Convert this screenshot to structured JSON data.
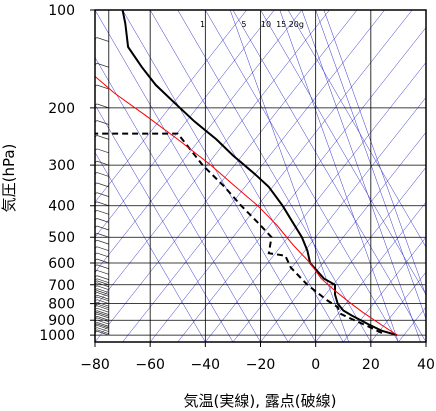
{
  "chart_data": {
    "type": "line",
    "xlabel": "気温(実線), 露点(破線)",
    "ylabel": "気圧(hPa)",
    "xlim": [
      -80,
      40
    ],
    "ylim_hpa": [
      1050,
      100
    ],
    "y_scale": "log",
    "x_ticks": [
      "−80",
      "−60",
      "−40",
      "−20",
      "0",
      "20",
      "40"
    ],
    "x_tick_values": [
      -80,
      -60,
      -40,
      -20,
      0,
      20,
      40
    ],
    "y_ticks": [
      "100",
      "200",
      "300",
      "400",
      "500",
      "600",
      "700",
      "800",
      "900",
      "1000"
    ],
    "y_tick_values": [
      100,
      200,
      300,
      400,
      500,
      600,
      700,
      800,
      900,
      1000
    ],
    "mixing_ratio_labels": [
      "1",
      "5",
      "10",
      "15",
      "20g"
    ],
    "grid": true,
    "colors": {
      "temperature": "#000000",
      "dewpoint": "#000000",
      "parcel": "#ff0000",
      "background_lines": "#3333cc",
      "grid": "#000000"
    },
    "series": [
      {
        "role": "temperature",
        "style": "solid",
        "points": [
          [
            29.5,
            1000
          ],
          [
            24,
            970
          ],
          [
            19,
            925
          ],
          [
            13,
            870
          ],
          [
            10,
            840
          ],
          [
            8,
            800
          ],
          [
            7,
            750
          ],
          [
            7,
            700
          ],
          [
            3,
            670
          ],
          [
            -2,
            600
          ],
          [
            -3,
            550
          ],
          [
            -5,
            500
          ],
          [
            -9,
            440
          ],
          [
            -12,
            400
          ],
          [
            -17,
            350
          ],
          [
            -22,
            320
          ],
          [
            -30,
            280
          ],
          [
            -36,
            250
          ],
          [
            -44,
            220
          ],
          [
            -52,
            190
          ],
          [
            -58,
            170
          ],
          [
            -63,
            150
          ],
          [
            -68,
            130
          ],
          [
            -69,
            110
          ],
          [
            -70,
            100
          ]
        ]
      },
      {
        "role": "dewpoint",
        "style": "dashed",
        "points": [
          [
            24,
            985
          ],
          [
            19,
            940
          ],
          [
            14,
            900
          ],
          [
            9,
            860
          ],
          [
            8,
            820
          ],
          [
            4,
            780
          ],
          [
            -3,
            700
          ],
          [
            -9,
            620
          ],
          [
            -11,
            570
          ],
          [
            -17,
            560
          ],
          [
            -16,
            500
          ],
          [
            -21,
            450
          ],
          [
            -27,
            400
          ],
          [
            -33,
            350
          ],
          [
            -41,
            300
          ],
          [
            -50,
            240
          ],
          [
            -82,
            240
          ]
        ]
      },
      {
        "role": "parcel",
        "style": "solid",
        "points": [
          [
            29.5,
            1000
          ],
          [
            23,
            920
          ],
          [
            17,
            850
          ],
          [
            12,
            790
          ],
          [
            7,
            730
          ],
          [
            2,
            670
          ],
          [
            -2,
            600
          ],
          [
            -8,
            530
          ],
          [
            -14,
            460
          ],
          [
            -21,
            400
          ],
          [
            -29,
            350
          ],
          [
            -38,
            300
          ],
          [
            -50,
            250
          ],
          [
            -62,
            210
          ],
          [
            -73,
            180
          ],
          [
            -80,
            160
          ],
          [
            -87,
            140
          ]
        ]
      }
    ],
    "wind_barbs": {
      "x_position": -75,
      "pressure_levels": [
        1000,
        990,
        975,
        960,
        950,
        940,
        925,
        910,
        900,
        885,
        875,
        865,
        850,
        835,
        825,
        815,
        800,
        785,
        775,
        760,
        750,
        740,
        725,
        710,
        700,
        690,
        675,
        650,
        625,
        600,
        575,
        550,
        525,
        500,
        475,
        450,
        425,
        400,
        375,
        350,
        325,
        300,
        275,
        250,
        225,
        200,
        175,
        150,
        125,
        100
      ]
    }
  }
}
